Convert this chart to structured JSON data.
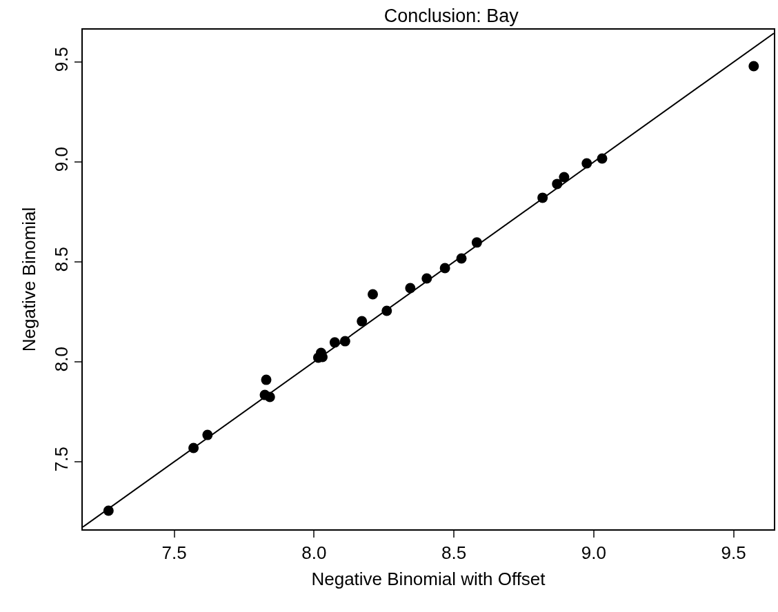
{
  "chart_data": {
    "type": "scatter",
    "title": "Conclusion: Bay",
    "xlabel": "Negative Binomial with Offset",
    "ylabel": "Negative Binomial",
    "xlim": [
      7.173,
      9.644
    ],
    "ylim": [
      7.162,
      9.662
    ],
    "xticks": [
      7.5,
      {
        "value": 8,
        "label": "8.0"
      },
      8.5,
      {
        "value": 9,
        "label": "9.0"
      },
      9.5
    ],
    "yticks": [
      7.5,
      {
        "value": 8,
        "label": "8.0"
      },
      8.5,
      {
        "value": 9,
        "label": "9.0"
      },
      9.5
    ],
    "series": [
      {
        "marker": "circle",
        "color": "#000000",
        "x": [
          7.265,
          7.569,
          7.619,
          7.829,
          7.824,
          7.842,
          8.015,
          8.025,
          8.03,
          8.074,
          8.111,
          8.171,
          8.21,
          8.26,
          8.344,
          8.403,
          8.468,
          8.527,
          8.582,
          8.817,
          8.869,
          8.894,
          8.975,
          9.03,
          9.572
        ],
        "values": [
          7.255,
          7.569,
          7.634,
          7.91,
          7.834,
          7.824,
          8.021,
          8.045,
          8.024,
          8.097,
          8.103,
          8.203,
          8.338,
          8.255,
          8.369,
          8.417,
          8.469,
          8.517,
          8.597,
          8.821,
          8.89,
          8.924,
          8.993,
          9.017,
          9.479
        ]
      },
      {
        "type": "line",
        "color": "#000000",
        "x": [
          7.173,
          9.644
        ],
        "values": [
          7.173,
          9.644
        ]
      }
    ]
  }
}
